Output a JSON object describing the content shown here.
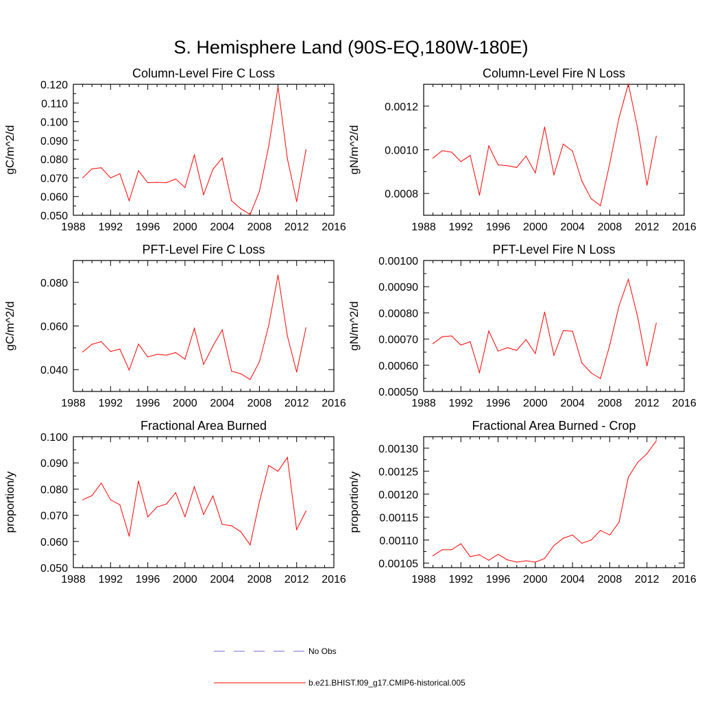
{
  "figure": {
    "title": "S. Hemisphere Land (90S-EQ,180W-180E)"
  },
  "colors": {
    "model_line": "#ff0000",
    "obs_line": "#6a6acd",
    "axes": "#000000"
  },
  "legend": {
    "entries": [
      {
        "label": "No Obs",
        "style": "dashed",
        "color": "#6a6acd"
      },
      {
        "label": "b.e21.BHIST.f09_g17.CMIP6-historical.005",
        "style": "solid",
        "color": "#ff0000"
      }
    ]
  },
  "chart_data": [
    {
      "type": "line",
      "title": "Column-Level Fire C Loss",
      "ylabel": "gC/m^2/d",
      "xlim": [
        1988,
        2016
      ],
      "ylim": [
        0.05,
        0.12
      ],
      "xticks": [
        "1988",
        "1992",
        "1996",
        "2000",
        "2004",
        "2008",
        "2012",
        "2016"
      ],
      "yticks": [
        "0.050",
        "0.060",
        "0.070",
        "0.080",
        "0.090",
        "0.100",
        "0.110",
        "0.120"
      ],
      "grid": false,
      "x": [
        1989,
        1990,
        1991,
        1992,
        1993,
        1994,
        1995,
        1996,
        1997,
        1998,
        1999,
        2000,
        2001,
        2002,
        2003,
        2004,
        2005,
        2006,
        2007,
        2008,
        2009,
        2010,
        2011,
        2012,
        2013
      ],
      "series": [
        {
          "name": "b.e21.BHIST.f09_g17.CMIP6-historical.005",
          "values": [
            0.07,
            0.0748,
            0.0754,
            0.07,
            0.0722,
            0.0578,
            0.0738,
            0.0674,
            0.0676,
            0.0674,
            0.0694,
            0.0648,
            0.0822,
            0.061,
            0.0746,
            0.0806,
            0.0578,
            0.0535,
            0.0504,
            0.0628,
            0.0868,
            0.1187,
            0.0804,
            0.0573,
            0.085
          ]
        }
      ]
    },
    {
      "type": "line",
      "title": "Column-Level Fire N Loss",
      "ylabel": "gN/m^2/d",
      "xlim": [
        1988,
        2016
      ],
      "ylim": [
        0.0007,
        0.0013
      ],
      "xticks": [
        "1988",
        "1992",
        "1996",
        "2000",
        "2004",
        "2008",
        "2012",
        "2016"
      ],
      "yticks": [
        "0.0008",
        "0.0010",
        "0.0012"
      ],
      "grid": false,
      "x": [
        1989,
        1990,
        1991,
        1992,
        1993,
        1994,
        1995,
        1996,
        1997,
        1998,
        1999,
        2000,
        2001,
        2002,
        2003,
        2004,
        2005,
        2006,
        2007,
        2008,
        2009,
        2010,
        2011,
        2012,
        2013
      ],
      "series": [
        {
          "name": "b.e21.BHIST.f09_g17.CMIP6-historical.005",
          "values": [
            0.000962,
            0.000996,
            0.000989,
            0.000946,
            0.000974,
            0.000792,
            0.001018,
            0.000931,
            0.000927,
            0.000919,
            0.000971,
            0.000894,
            0.001104,
            0.000885,
            0.001026,
            0.000994,
            0.000857,
            0.000776,
            0.000744,
            0.000937,
            0.001147,
            0.001302,
            0.001098,
            0.000838,
            0.001062
          ]
        }
      ]
    },
    {
      "type": "line",
      "title": "PFT-Level Fire C Loss",
      "ylabel": "gC/m^2/d",
      "xlim": [
        1988,
        2016
      ],
      "ylim": [
        0.03,
        0.09
      ],
      "xticks": [
        "1988",
        "1992",
        "1996",
        "2000",
        "2004",
        "2008",
        "2012",
        "2016"
      ],
      "yticks": [
        "0.040",
        "0.060",
        "0.080"
      ],
      "grid": false,
      "x": [
        1989,
        1990,
        1991,
        1992,
        1993,
        1994,
        1995,
        1996,
        1997,
        1998,
        1999,
        2000,
        2001,
        2002,
        2003,
        2004,
        2005,
        2006,
        2007,
        2008,
        2009,
        2010,
        2011,
        2012,
        2013
      ],
      "series": [
        {
          "name": "b.e21.BHIST.f09_g17.CMIP6-historical.005",
          "values": [
            0.0481,
            0.0516,
            0.0528,
            0.0483,
            0.0494,
            0.0398,
            0.0517,
            0.0458,
            0.047,
            0.0466,
            0.0478,
            0.0448,
            0.0589,
            0.0424,
            0.0508,
            0.0582,
            0.0393,
            0.0381,
            0.0355,
            0.0436,
            0.0603,
            0.0833,
            0.0555,
            0.0389,
            0.0592
          ]
        }
      ]
    },
    {
      "type": "line",
      "title": "PFT-Level Fire N Loss",
      "ylabel": "gN/m^2/d",
      "xlim": [
        1988,
        2016
      ],
      "ylim": [
        0.0005,
        0.001
      ],
      "xticks": [
        "1988",
        "1992",
        "1996",
        "2000",
        "2004",
        "2008",
        "2012",
        "2016"
      ],
      "yticks": [
        "0.00050",
        "0.00060",
        "0.00070",
        "0.00080",
        "0.00090",
        "0.00100"
      ],
      "grid": false,
      "x": [
        1989,
        1990,
        1991,
        1992,
        1993,
        1994,
        1995,
        1996,
        1997,
        1998,
        1999,
        2000,
        2001,
        2002,
        2003,
        2004,
        2005,
        2006,
        2007,
        2008,
        2009,
        2010,
        2011,
        2012,
        2013
      ],
      "series": [
        {
          "name": "b.e21.BHIST.f09_g17.CMIP6-historical.005",
          "values": [
            0.000683,
            0.000709,
            0.000712,
            0.000677,
            0.00069,
            0.000572,
            0.000731,
            0.000654,
            0.000667,
            0.000657,
            0.000698,
            0.000645,
            0.000803,
            0.000638,
            0.000732,
            0.00073,
            0.000609,
            0.000571,
            0.000549,
            0.000677,
            0.000827,
            0.000928,
            0.000785,
            0.000598,
            0.000761
          ]
        }
      ]
    },
    {
      "type": "line",
      "title": "Fractional Area Burned",
      "ylabel": "proportion/y",
      "xlim": [
        1988,
        2016
      ],
      "ylim": [
        0.05,
        0.1
      ],
      "xticks": [
        "1988",
        "1992",
        "1996",
        "2000",
        "2004",
        "2008",
        "2012",
        "2016"
      ],
      "yticks": [
        "0.050",
        "0.060",
        "0.070",
        "0.080",
        "0.090",
        "0.100"
      ],
      "grid": false,
      "x": [
        1989,
        1990,
        1991,
        1992,
        1993,
        1994,
        1995,
        1996,
        1997,
        1998,
        1999,
        2000,
        2001,
        2002,
        2003,
        2004,
        2005,
        2006,
        2007,
        2008,
        2009,
        2010,
        2011,
        2012,
        2013
      ],
      "series": [
        {
          "name": "b.e21.BHIST.f09_g17.CMIP6-historical.005",
          "values": [
            0.0759,
            0.0775,
            0.0823,
            0.0759,
            0.074,
            0.062,
            0.0831,
            0.0694,
            0.0732,
            0.0743,
            0.0786,
            0.0694,
            0.0809,
            0.0703,
            0.0774,
            0.0665,
            0.066,
            0.0637,
            0.0587,
            0.0752,
            0.089,
            0.0868,
            0.0921,
            0.0645,
            0.0716
          ]
        }
      ]
    },
    {
      "type": "line",
      "title": "Fractional Area Burned - Crop",
      "ylabel": "proportion/y",
      "xlim": [
        1988,
        2016
      ],
      "ylim": [
        0.00104,
        0.001325
      ],
      "xticks": [
        "1988",
        "1992",
        "1996",
        "2000",
        "2004",
        "2008",
        "2012",
        "2016"
      ],
      "yticks": [
        "0.00105",
        "0.00110",
        "0.00115",
        "0.00120",
        "0.00125",
        "0.00130"
      ],
      "grid": false,
      "x": [
        1989,
        1990,
        1991,
        1992,
        1993,
        1994,
        1995,
        1996,
        1997,
        1998,
        1999,
        2000,
        2001,
        2002,
        2003,
        2004,
        2005,
        2006,
        2007,
        2008,
        2009,
        2010,
        2011,
        2012,
        2013
      ],
      "series": [
        {
          "name": "b.e21.BHIST.f09_g17.CMIP6-historical.005",
          "values": [
            0.001066,
            0.001079,
            0.001079,
            0.001092,
            0.001064,
            0.001068,
            0.001056,
            0.001069,
            0.001057,
            0.001052,
            0.001055,
            0.001052,
            0.00106,
            0.001088,
            0.001104,
            0.001111,
            0.001093,
            0.0011,
            0.001121,
            0.001111,
            0.001139,
            0.001237,
            0.001269,
            0.001288,
            0.001316
          ]
        }
      ]
    }
  ]
}
